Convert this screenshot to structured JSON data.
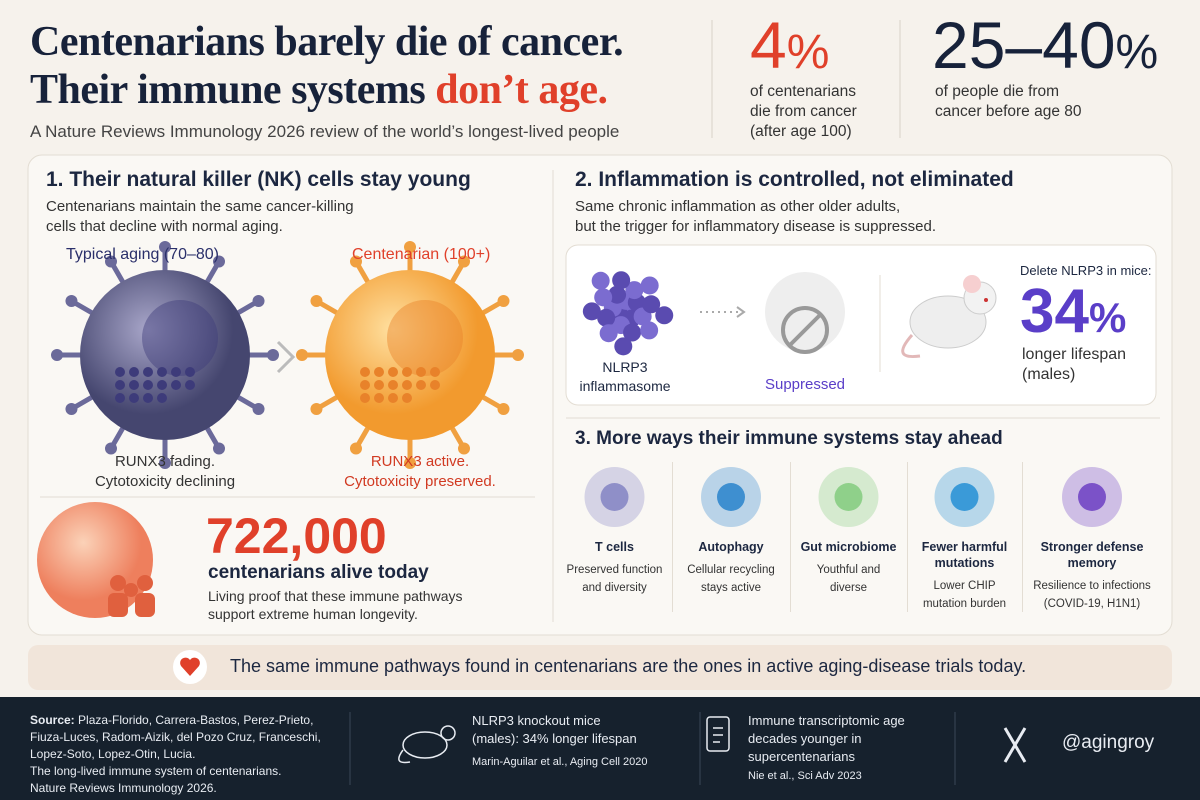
{
  "header": {
    "title_line_1": "Centenarians barely die of cancer.",
    "title_line_2": "Their immune systems",
    "title_highlight": "don’t age.",
    "subtitle": "A Nature Reviews Immunology 2026 review of the world’s longest-lived people"
  },
  "stats": [
    {
      "number": "4",
      "unit": "%",
      "lines": [
        "of centenarians",
        "die from cancer",
        "(after age 100)"
      ]
    },
    {
      "number": "25–40",
      "unit": "%",
      "lines": [
        "of people die from",
        "cancer before age 80"
      ]
    }
  ],
  "section_1": {
    "title": "1. Their natural killer (NK) cells stay young",
    "description_lines": [
      "Centenarians maintain the same cancer-killing",
      "cells that decline with normal aging."
    ],
    "typical": {
      "label": "Typical aging (70–80)",
      "caption_lines": [
        "RUNX3 fading.",
        "Cytotoxicity declining"
      ]
    },
    "centenarian": {
      "label": "Centenarian (100+)",
      "caption_lines": [
        "RUNX3 active.",
        "Cytotoxicity preserved."
      ]
    }
  },
  "population": {
    "number": "722,000",
    "label": "centenarians alive today",
    "description_lines": [
      "Living proof that these immune pathways",
      "support extreme human longevity."
    ]
  },
  "section_2": {
    "title": "2. Inflammation is controlled, not eliminated",
    "description_lines": [
      "Same chronic inflammation as other older adults,",
      "but the trigger for inflammatory disease is suppressed."
    ],
    "nlrp3_lines": [
      "NLRP3",
      "inflammasome"
    ],
    "suppressed": "Suppressed",
    "mice_heading": "Delete NLRP3 in mice:",
    "mice_number": "34",
    "mice_unit": "%",
    "mice_lines": [
      "longer lifespan",
      "(males)"
    ]
  },
  "section_3": {
    "title": "3. More ways their immune systems stay ahead",
    "items": [
      {
        "title_lines": [
          "T cells"
        ],
        "description_lines": [
          "Preserved function",
          "and diversity"
        ]
      },
      {
        "title_lines": [
          "Autophagy"
        ],
        "description_lines": [
          "Cellular recycling",
          "stays active"
        ]
      },
      {
        "title_lines": [
          "Gut microbiome"
        ],
        "description_lines": [
          "Youthful and",
          "diverse"
        ]
      },
      {
        "title_lines": [
          "Fewer harmful",
          "mutations"
        ],
        "description_lines": [
          "Lower CHIP",
          "mutation burden"
        ]
      },
      {
        "title_lines": [
          "Stronger defense",
          "memory"
        ],
        "description_lines": [
          "Resilience to infections",
          "(COVID-19, H1N1)"
        ]
      }
    ]
  },
  "banner": {
    "text": "The same immune pathways found in centenarians are the ones in active aging-disease trials today."
  },
  "footer": {
    "source_label": "Source:",
    "source_first": "Plaza-Florido, Carrera-Bastos, Perez-Prieto,",
    "source_lines": [
      "Fiuza-Luces, Radom-Aizik, del Pozo Cruz, Franceschi,",
      "Lopez-Soto, Lopez-Otin, Lucia.",
      "The long-lived immune system of centenarians.",
      "Nature Reviews Immunology 2026."
    ],
    "mice": {
      "lines": [
        "NLRP3 knockout mice",
        "(males): 34% longer lifespan"
      ],
      "citation": "Marin-Aguilar et al., Aging Cell 2020"
    },
    "transcriptomic": {
      "lines": [
        "Immune transcriptomic age",
        "decades younger in",
        "supercentenarians"
      ],
      "citation": "Nie et al., Sci Adv 2023"
    },
    "handle": "@agingroy"
  }
}
